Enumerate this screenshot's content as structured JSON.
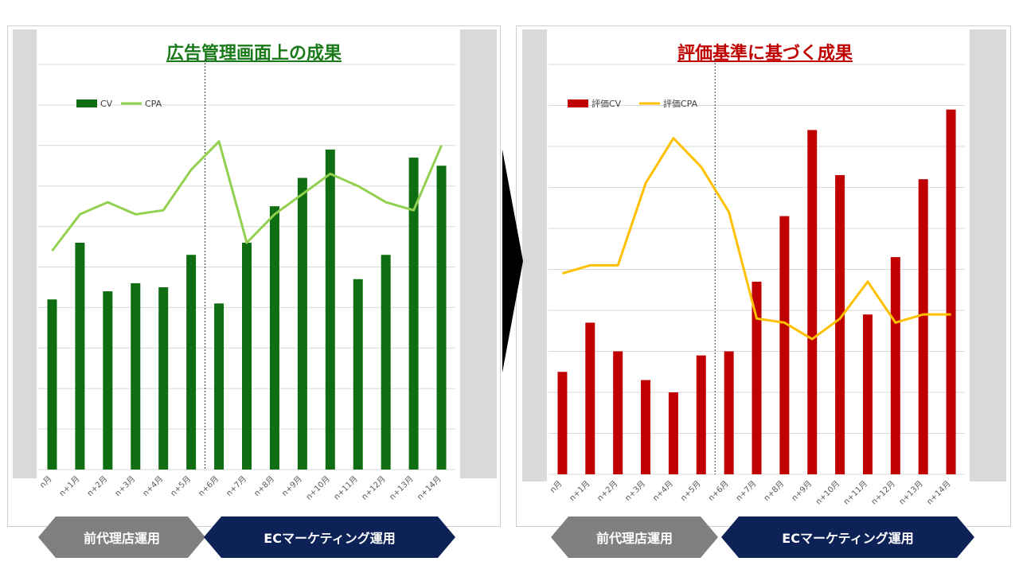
{
  "arrows": {
    "before": "前代理店運用",
    "after": "ECマーケティング運用",
    "before_color": "#808080",
    "after_color": "#0d2257",
    "transition_color": "#000000"
  },
  "chart_data": [
    {
      "type": "bar",
      "title": "広告管理画面上の成果",
      "title_color": "#1a7a1a",
      "categories": [
        "n月",
        "n+1月",
        "n+2月",
        "n+3月",
        "n+4月",
        "n+5月",
        "n+6月",
        "n+7月",
        "n+8月",
        "n+9月",
        "n+10月",
        "n+11月",
        "n+12月",
        "n+13月",
        "n+14月"
      ],
      "series": [
        {
          "name": "CV",
          "kind": "bar",
          "color": "#0f6e12",
          "values": [
            4.2,
            5.6,
            4.4,
            4.6,
            4.5,
            5.3,
            4.1,
            5.6,
            6.5,
            7.2,
            7.9,
            4.7,
            5.3,
            7.7,
            7.5
          ]
        },
        {
          "name": "CPA",
          "kind": "line",
          "color": "#92d050",
          "values": [
            5.4,
            6.3,
            6.6,
            6.3,
            6.4,
            7.4,
            8.1,
            5.6,
            6.3,
            6.8,
            7.3,
            7.0,
            6.6,
            6.4,
            8.0
          ]
        }
      ],
      "ylim": [
        0,
        10
      ],
      "gridlines": true,
      "legend": "top-left",
      "divider_after": "n+5月"
    },
    {
      "type": "bar",
      "title": "評価基準に基づく成果",
      "title_color": "#c00000",
      "categories": [
        "n月",
        "n+1月",
        "n+2月",
        "n+3月",
        "n+4月",
        "n+5月",
        "n+6月",
        "n+7月",
        "n+8月",
        "n+9月",
        "n+10月",
        "n+11月",
        "n+12月",
        "n+13月",
        "n+14月"
      ],
      "series": [
        {
          "name": "評価CV",
          "kind": "bar",
          "color": "#c00000",
          "values": [
            2.5,
            3.7,
            3.0,
            2.3,
            2.0,
            2.9,
            3.0,
            4.7,
            6.3,
            8.4,
            7.3,
            3.9,
            5.3,
            7.2,
            8.9
          ]
        },
        {
          "name": "評価CPA",
          "kind": "line",
          "color": "#ffc000",
          "values": [
            4.9,
            5.1,
            5.1,
            7.1,
            8.2,
            7.5,
            6.4,
            3.8,
            3.7,
            3.3,
            3.8,
            4.7,
            3.7,
            3.9,
            3.9
          ]
        }
      ],
      "ylim": [
        0,
        10
      ],
      "gridlines": true,
      "legend": "top-left",
      "divider_after": "n+5月"
    }
  ]
}
